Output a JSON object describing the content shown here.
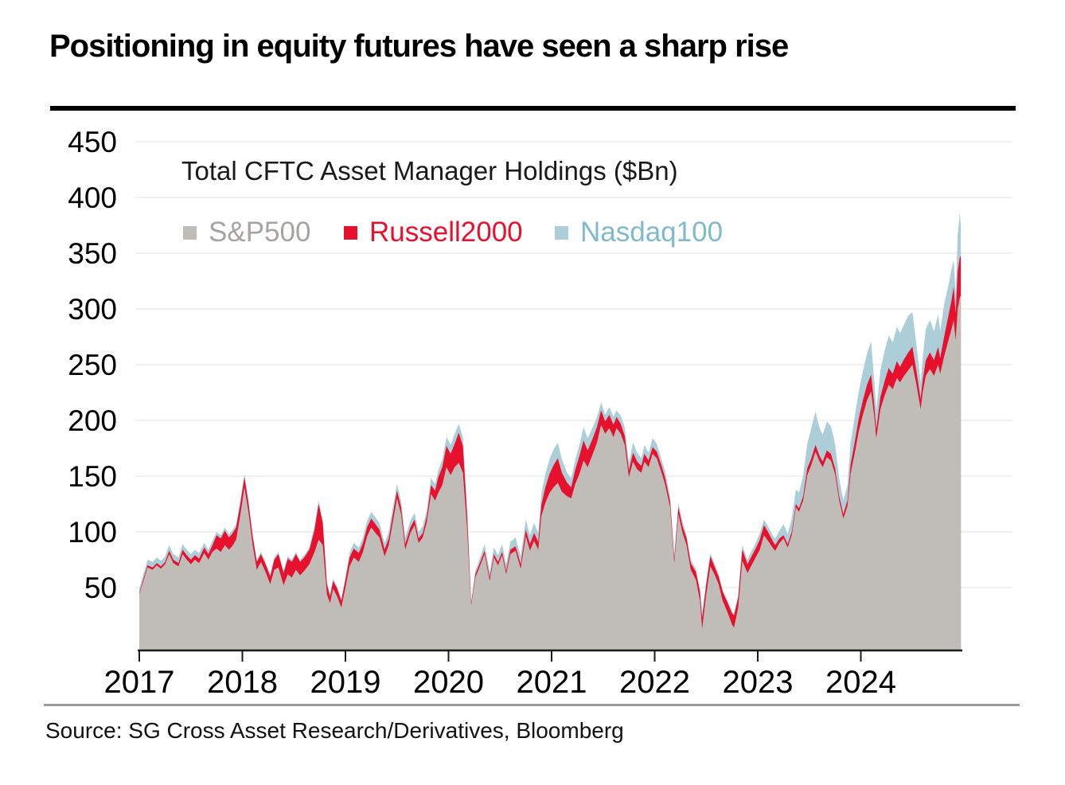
{
  "page_title": "Positioning in equity futures have seen a sharp rise",
  "source_line": "Source: SG Cross Asset Research/Derivatives, Bloomberg",
  "colors": {
    "background": "#ffffff",
    "title_text": "#000000",
    "axis_text": "#000000",
    "axis_line": "#1a1a1a",
    "gridline": "#ebebe9",
    "top_rule": "#000000",
    "bottom_rule": "#9b9b9b",
    "sp500": "#c0bdb9",
    "russell2000": "#e8112d",
    "nasdaq100": "#abced9",
    "legend_sp500_text": "#a6a3a1",
    "legend_russell_text": "#e8112d",
    "legend_nasdaq_text": "#7fb9cb"
  },
  "chart_data": {
    "type": "area",
    "stacked": true,
    "title": "Total CFTC Asset Manager Holdings ($Bn)",
    "xlabel": "",
    "ylabel": "Total CFTC Asset Manager Holdings ($Bn)",
    "ylim": [
      0,
      450
    ],
    "yticks": [
      450,
      400,
      350,
      300,
      250,
      200,
      150,
      100,
      50
    ],
    "xticks": [
      2017,
      2018,
      2019,
      2020,
      2021,
      2022,
      2023,
      2024
    ],
    "x_range": [
      2017.0,
      2024.97
    ],
    "grid": true,
    "legend_position": "top-left-inside",
    "series": [
      {
        "name": "S&P500",
        "color": "#c0bdb9",
        "text_color": "#a6a3a1"
      },
      {
        "name": "Russell2000",
        "color": "#e8112d",
        "text_color": "#e8112d"
      },
      {
        "name": "Nasdaq100",
        "color": "#abced9",
        "text_color": "#7fb9cb"
      }
    ],
    "points_format": [
      "year",
      "sp500",
      "russell2000",
      "nasdaq100"
    ],
    "points": [
      [
        2017.0,
        44,
        1,
        4
      ],
      [
        2017.04,
        56,
        2,
        4
      ],
      [
        2017.08,
        68,
        2,
        5
      ],
      [
        2017.13,
        66,
        2,
        5
      ],
      [
        2017.17,
        70,
        2,
        5
      ],
      [
        2017.21,
        67,
        2,
        5
      ],
      [
        2017.25,
        71,
        2,
        5
      ],
      [
        2017.29,
        80,
        3,
        5
      ],
      [
        2017.33,
        72,
        3,
        5
      ],
      [
        2017.38,
        69,
        3,
        5
      ],
      [
        2017.42,
        80,
        4,
        5
      ],
      [
        2017.46,
        75,
        4,
        5
      ],
      [
        2017.5,
        71,
        4,
        5
      ],
      [
        2017.54,
        75,
        4,
        5
      ],
      [
        2017.58,
        72,
        4,
        5
      ],
      [
        2017.63,
        81,
        5,
        4
      ],
      [
        2017.67,
        75,
        5,
        4
      ],
      [
        2017.71,
        82,
        6,
        4
      ],
      [
        2017.75,
        85,
        12,
        3
      ],
      [
        2017.79,
        82,
        12,
        3
      ],
      [
        2017.83,
        88,
        13,
        3
      ],
      [
        2017.87,
        84,
        11,
        3
      ],
      [
        2017.9,
        87,
        11,
        3
      ],
      [
        2017.94,
        93,
        11,
        3
      ],
      [
        2017.98,
        115,
        10,
        3
      ],
      [
        2018.02,
        140,
        9,
        3
      ],
      [
        2018.06,
        117,
        8,
        3
      ],
      [
        2018.1,
        88,
        8,
        2
      ],
      [
        2018.14,
        66,
        7,
        2
      ],
      [
        2018.18,
        73,
        7,
        2
      ],
      [
        2018.22,
        65,
        7,
        2
      ],
      [
        2018.27,
        53,
        7,
        2
      ],
      [
        2018.31,
        66,
        9,
        2
      ],
      [
        2018.35,
        68,
        12,
        2
      ],
      [
        2018.4,
        52,
        11,
        2
      ],
      [
        2018.44,
        62,
        14,
        2
      ],
      [
        2018.48,
        59,
        14,
        2
      ],
      [
        2018.52,
        66,
        14,
        2
      ],
      [
        2018.56,
        61,
        12,
        2
      ],
      [
        2018.6,
        65,
        12,
        2
      ],
      [
        2018.65,
        71,
        13,
        2
      ],
      [
        2018.7,
        82,
        20,
        3
      ],
      [
        2018.74,
        93,
        32,
        3
      ],
      [
        2018.78,
        88,
        20,
        2
      ],
      [
        2018.82,
        44,
        9,
        2
      ],
      [
        2018.85,
        36,
        6,
        2
      ],
      [
        2018.88,
        49,
        7,
        2
      ],
      [
        2018.92,
        42,
        7,
        2
      ],
      [
        2018.96,
        32,
        6,
        2
      ],
      [
        2019.0,
        50,
        7,
        3
      ],
      [
        2019.04,
        69,
        8,
        4
      ],
      [
        2019.08,
        77,
        8,
        5
      ],
      [
        2019.13,
        73,
        8,
        5
      ],
      [
        2019.17,
        82,
        8,
        5
      ],
      [
        2019.21,
        96,
        8,
        6
      ],
      [
        2019.25,
        104,
        8,
        6
      ],
      [
        2019.29,
        99,
        8,
        6
      ],
      [
        2019.33,
        95,
        7,
        6
      ],
      [
        2019.38,
        78,
        6,
        6
      ],
      [
        2019.42,
        88,
        6,
        6
      ],
      [
        2019.46,
        109,
        7,
        6
      ],
      [
        2019.5,
        130,
        7,
        6
      ],
      [
        2019.54,
        116,
        6,
        6
      ],
      [
        2019.58,
        84,
        5,
        6
      ],
      [
        2019.63,
        99,
        5,
        6
      ],
      [
        2019.67,
        106,
        5,
        6
      ],
      [
        2019.71,
        90,
        4,
        6
      ],
      [
        2019.75,
        95,
        4,
        6
      ],
      [
        2019.79,
        109,
        5,
        6
      ],
      [
        2019.83,
        134,
        8,
        6
      ],
      [
        2019.87,
        128,
        9,
        6
      ],
      [
        2019.9,
        135,
        14,
        6
      ],
      [
        2019.94,
        142,
        16,
        7
      ],
      [
        2019.98,
        158,
        19,
        8
      ],
      [
        2020.02,
        151,
        19,
        8
      ],
      [
        2020.06,
        158,
        21,
        9
      ],
      [
        2020.1,
        162,
        27,
        8
      ],
      [
        2020.14,
        153,
        24,
        8
      ],
      [
        2020.18,
        103,
        13,
        4
      ],
      [
        2020.22,
        34,
        2,
        2
      ],
      [
        2020.26,
        59,
        3,
        3
      ],
      [
        2020.3,
        68,
        3,
        4
      ],
      [
        2020.35,
        80,
        3,
        6
      ],
      [
        2020.4,
        56,
        3,
        5
      ],
      [
        2020.44,
        77,
        3,
        6
      ],
      [
        2020.48,
        70,
        3,
        6
      ],
      [
        2020.52,
        79,
        3,
        7
      ],
      [
        2020.56,
        62,
        3,
        6
      ],
      [
        2020.6,
        80,
        4,
        7
      ],
      [
        2020.65,
        83,
        4,
        8
      ],
      [
        2020.7,
        67,
        4,
        7
      ],
      [
        2020.75,
        96,
        6,
        9
      ],
      [
        2020.79,
        83,
        6,
        8
      ],
      [
        2020.83,
        92,
        7,
        9
      ],
      [
        2020.87,
        84,
        7,
        8
      ],
      [
        2020.9,
        114,
        10,
        10
      ],
      [
        2020.94,
        126,
        14,
        12
      ],
      [
        2020.98,
        135,
        17,
        13
      ],
      [
        2021.02,
        140,
        20,
        14
      ],
      [
        2021.06,
        144,
        22,
        14
      ],
      [
        2021.1,
        136,
        17,
        12
      ],
      [
        2021.15,
        132,
        12,
        9
      ],
      [
        2021.19,
        130,
        10,
        8
      ],
      [
        2021.23,
        143,
        13,
        9
      ],
      [
        2021.27,
        152,
        16,
        10
      ],
      [
        2021.31,
        164,
        18,
        12
      ],
      [
        2021.35,
        158,
        15,
        11
      ],
      [
        2021.4,
        170,
        14,
        10
      ],
      [
        2021.44,
        180,
        14,
        9
      ],
      [
        2021.48,
        196,
        13,
        7
      ],
      [
        2021.52,
        188,
        11,
        6
      ],
      [
        2021.56,
        193,
        12,
        7
      ],
      [
        2021.6,
        185,
        11,
        7
      ],
      [
        2021.63,
        193,
        10,
        6
      ],
      [
        2021.67,
        188,
        9,
        7
      ],
      [
        2021.71,
        178,
        8,
        8
      ],
      [
        2021.75,
        149,
        6,
        7
      ],
      [
        2021.79,
        163,
        8,
        9
      ],
      [
        2021.83,
        156,
        7,
        8
      ],
      [
        2021.87,
        153,
        6,
        7
      ],
      [
        2021.9,
        163,
        7,
        8
      ],
      [
        2021.94,
        158,
        6,
        7
      ],
      [
        2021.98,
        170,
        6,
        8
      ],
      [
        2022.02,
        166,
        6,
        7
      ],
      [
        2022.06,
        155,
        6,
        6
      ],
      [
        2022.1,
        143,
        6,
        6
      ],
      [
        2022.15,
        122,
        5,
        5
      ],
      [
        2022.19,
        72,
        4,
        3
      ],
      [
        2022.23,
        116,
        6,
        4
      ],
      [
        2022.27,
        99,
        6,
        4
      ],
      [
        2022.31,
        88,
        6,
        3
      ],
      [
        2022.35,
        66,
        6,
        3
      ],
      [
        2022.4,
        57,
        7,
        3
      ],
      [
        2022.44,
        38,
        8,
        2
      ],
      [
        2022.46,
        13,
        10,
        2
      ],
      [
        2022.5,
        44,
        9,
        2
      ],
      [
        2022.54,
        69,
        9,
        3
      ],
      [
        2022.58,
        62,
        7,
        3
      ],
      [
        2022.62,
        53,
        7,
        2
      ],
      [
        2022.66,
        38,
        8,
        2
      ],
      [
        2022.71,
        27,
        9,
        2
      ],
      [
        2022.75,
        17,
        10,
        2
      ],
      [
        2022.77,
        14,
        11,
        2
      ],
      [
        2022.81,
        32,
        9,
        2
      ],
      [
        2022.85,
        74,
        10,
        4
      ],
      [
        2022.9,
        63,
        8,
        4
      ],
      [
        2022.94,
        70,
        8,
        5
      ],
      [
        2022.98,
        77,
        8,
        5
      ],
      [
        2023.02,
        84,
        9,
        6
      ],
      [
        2023.06,
        97,
        9,
        5
      ],
      [
        2023.1,
        92,
        8,
        5
      ],
      [
        2023.15,
        85,
        6,
        5
      ],
      [
        2023.17,
        83,
        5,
        6
      ],
      [
        2023.21,
        90,
        4,
        7
      ],
      [
        2023.25,
        94,
        3,
        10
      ],
      [
        2023.29,
        86,
        3,
        9
      ],
      [
        2023.33,
        97,
        3,
        12
      ],
      [
        2023.37,
        122,
        3,
        13
      ],
      [
        2023.4,
        118,
        3,
        14
      ],
      [
        2023.44,
        128,
        4,
        18
      ],
      [
        2023.48,
        151,
        6,
        22
      ],
      [
        2023.52,
        160,
        6,
        27
      ],
      [
        2023.56,
        172,
        6,
        30
      ],
      [
        2023.6,
        163,
        5,
        25
      ],
      [
        2023.63,
        158,
        5,
        24
      ],
      [
        2023.67,
        167,
        6,
        26
      ],
      [
        2023.71,
        164,
        6,
        25
      ],
      [
        2023.75,
        152,
        5,
        22
      ],
      [
        2023.79,
        128,
        4,
        16
      ],
      [
        2023.83,
        112,
        4,
        12
      ],
      [
        2023.87,
        123,
        5,
        14
      ],
      [
        2023.9,
        152,
        8,
        20
      ],
      [
        2023.94,
        170,
        10,
        23
      ],
      [
        2023.98,
        190,
        12,
        24
      ],
      [
        2024.02,
        205,
        13,
        26
      ],
      [
        2024.06,
        218,
        14,
        28
      ],
      [
        2024.1,
        226,
        15,
        30
      ],
      [
        2024.13,
        204,
        10,
        22
      ],
      [
        2024.15,
        184,
        8,
        17
      ],
      [
        2024.19,
        210,
        11,
        24
      ],
      [
        2024.23,
        222,
        13,
        27
      ],
      [
        2024.27,
        232,
        15,
        29
      ],
      [
        2024.31,
        228,
        14,
        28
      ],
      [
        2024.35,
        238,
        15,
        31
      ],
      [
        2024.38,
        234,
        14,
        30
      ],
      [
        2024.42,
        240,
        15,
        31
      ],
      [
        2024.46,
        245,
        16,
        33
      ],
      [
        2024.5,
        250,
        16,
        31
      ],
      [
        2024.54,
        232,
        12,
        24
      ],
      [
        2024.58,
        210,
        9,
        15
      ],
      [
        2024.6,
        225,
        11,
        20
      ],
      [
        2024.63,
        240,
        14,
        28
      ],
      [
        2024.67,
        246,
        15,
        29
      ],
      [
        2024.71,
        240,
        14,
        26
      ],
      [
        2024.75,
        250,
        16,
        29
      ],
      [
        2024.77,
        242,
        14,
        24
      ],
      [
        2024.81,
        258,
        18,
        29
      ],
      [
        2024.85,
        272,
        22,
        27
      ],
      [
        2024.88,
        282,
        26,
        28
      ],
      [
        2024.9,
        290,
        30,
        24
      ],
      [
        2024.92,
        272,
        24,
        18
      ],
      [
        2024.94,
        300,
        34,
        32
      ],
      [
        2024.96,
        310,
        36,
        40
      ],
      [
        2024.97,
        312,
        36,
        27
      ]
    ]
  }
}
